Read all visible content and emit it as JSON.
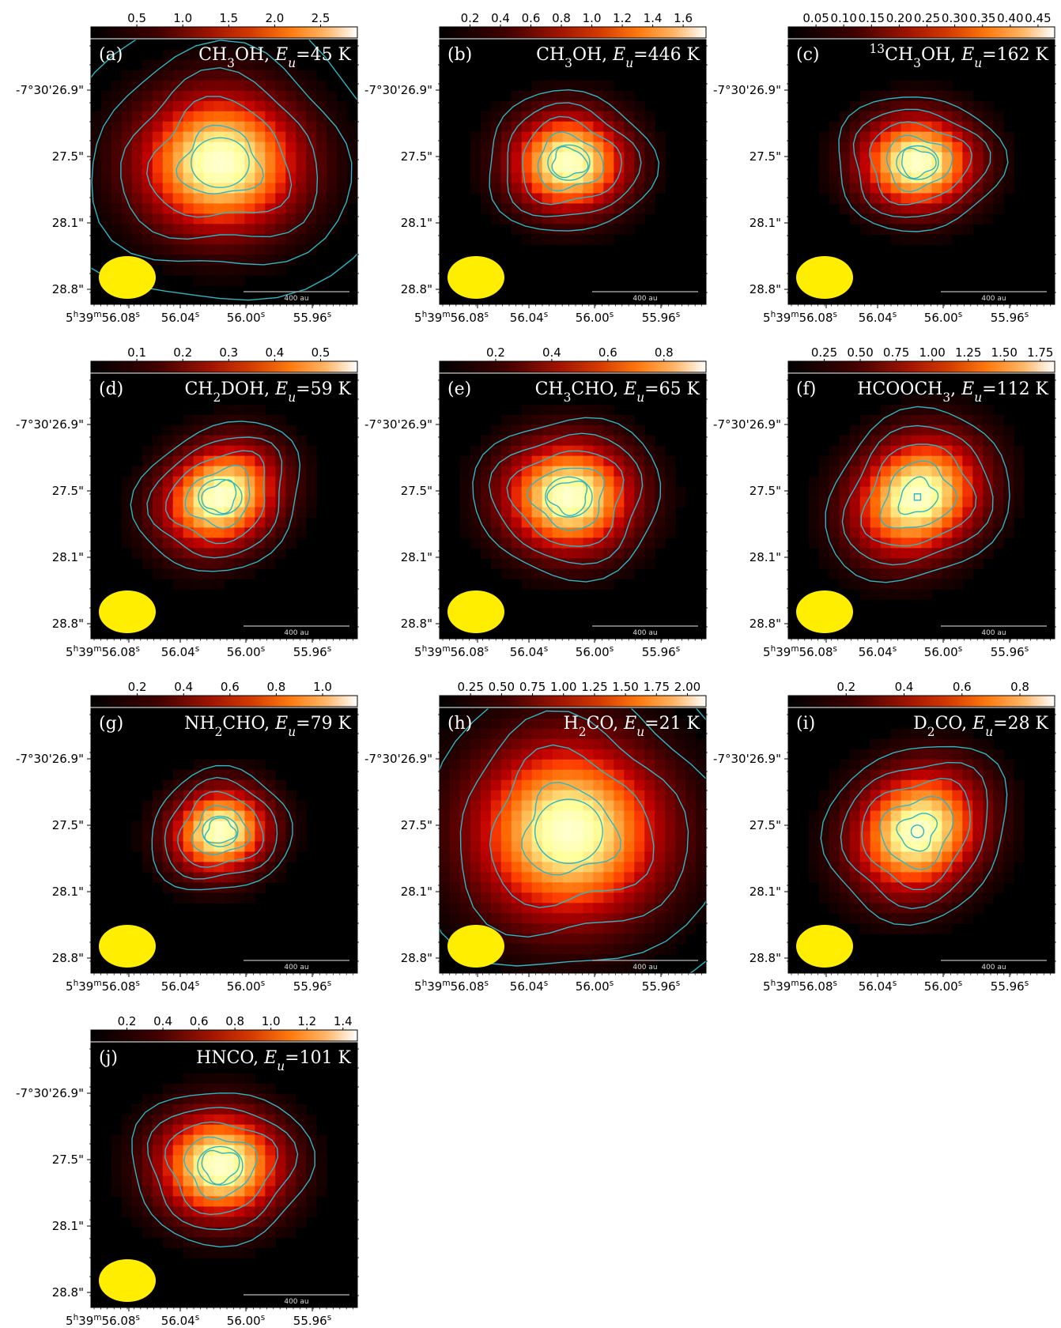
{
  "chart_data": [
    {
      "type": "heatmap",
      "panel_label": "(a)",
      "species_html": "CH<tspan baseline-shift='sub' font-size='70%'>3</tspan>OH,",
      "eu_value": "=45 K",
      "colorbar_ticks": [
        "0.5",
        "1.0",
        "1.5",
        "2.0",
        "2.5"
      ],
      "colorbar_range": [
        0,
        2.9
      ],
      "peak": 2.85,
      "sigma": [
        0.36,
        0.31
      ],
      "aspect": 1.08,
      "tilt": 0,
      "low_outer": true,
      "center_contour": "rounded"
    },
    {
      "type": "heatmap",
      "panel_label": "(b)",
      "species_html": "CH<tspan baseline-shift='sub' font-size='70%'>3</tspan>OH,",
      "eu_value": "=446 K",
      "colorbar_ticks": [
        "0.2",
        "0.4",
        "0.6",
        "0.8",
        "1.0",
        "1.2",
        "1.4",
        "1.6"
      ],
      "colorbar_range": [
        0,
        1.75
      ],
      "peak": 1.7,
      "sigma": [
        0.26,
        0.22
      ],
      "aspect": 1.2,
      "tilt": 0,
      "low_outer": false,
      "center_contour": "rounded"
    },
    {
      "type": "heatmap",
      "panel_label": "(c)",
      "species_html": "<tspan baseline-shift='super' font-size='70%'>13</tspan>CH<tspan baseline-shift='sub' font-size='70%'>3</tspan>OH,",
      "eu_value": "=162 K",
      "colorbar_ticks": [
        "0.05",
        "0.10",
        "0.15",
        "0.20",
        "0.25",
        "0.30",
        "0.35",
        "0.40",
        "0.45"
      ],
      "colorbar_range": [
        0,
        0.48
      ],
      "peak": 0.47,
      "sigma": [
        0.26,
        0.21
      ],
      "aspect": 1.25,
      "tilt": 0,
      "low_outer": false,
      "center_contour": "rounded"
    },
    {
      "type": "heatmap",
      "panel_label": "(d)",
      "species_html": "CH<tspan baseline-shift='sub' font-size='70%'>2</tspan>DOH,",
      "eu_value": "=59 K",
      "colorbar_ticks": [
        "0.1",
        "0.2",
        "0.3",
        "0.4",
        "0.5"
      ],
      "colorbar_range": [
        0,
        0.58
      ],
      "peak": 0.57,
      "sigma": [
        0.27,
        0.22
      ],
      "aspect": 1.3,
      "tilt": -30,
      "low_outer": false,
      "center_contour": "rounded"
    },
    {
      "type": "heatmap",
      "panel_label": "(e)",
      "species_html": "CH<tspan baseline-shift='sub' font-size='70%'>3</tspan>CHO,",
      "eu_value": "=65 K",
      "colorbar_ticks": [
        "0.2",
        "0.4",
        "0.6",
        "0.8"
      ],
      "colorbar_range": [
        0,
        0.95
      ],
      "peak": 0.93,
      "sigma": [
        0.29,
        0.25
      ],
      "aspect": 1.15,
      "tilt": 0,
      "low_outer": false,
      "center_contour": "rounded"
    },
    {
      "type": "heatmap",
      "panel_label": "(f)",
      "species_html": "HCOOCH<tspan baseline-shift='sub' font-size='70%'>3</tspan>,",
      "eu_value": "=112 K",
      "colorbar_ticks": [
        "0.25",
        "0.50",
        "0.75",
        "1.00",
        "1.25",
        "1.50",
        "1.75"
      ],
      "colorbar_range": [
        0,
        1.85
      ],
      "peak": 1.82,
      "sigma": [
        0.3,
        0.25
      ],
      "aspect": 1.2,
      "tilt": -35,
      "low_outer": false,
      "center_contour": "square"
    },
    {
      "type": "heatmap",
      "panel_label": "(g)",
      "species_html": "NH<tspan baseline-shift='sub' font-size='70%'>2</tspan>CHO,",
      "eu_value": "=79 K",
      "colorbar_ticks": [
        "0.2",
        "0.4",
        "0.6",
        "0.8",
        "1.0"
      ],
      "colorbar_range": [
        0,
        1.15
      ],
      "peak": 1.12,
      "sigma": [
        0.22,
        0.19
      ],
      "aspect": 1.25,
      "tilt": -15,
      "low_outer": false,
      "center_contour": "rounded"
    },
    {
      "type": "heatmap",
      "panel_label": "(h)",
      "species_html": "H<tspan baseline-shift='sub' font-size='70%'>2</tspan>CO,",
      "eu_value": "=21 K",
      "colorbar_ticks": [
        "0.25",
        "0.50",
        "0.75",
        "1.00",
        "1.25",
        "1.50",
        "1.75",
        "2.00"
      ],
      "colorbar_range": [
        0,
        2.15
      ],
      "peak": 2.1,
      "sigma": [
        0.42,
        0.4
      ],
      "aspect": 1.1,
      "tilt": 0,
      "low_outer": true,
      "center_contour": "rounded"
    },
    {
      "type": "heatmap",
      "panel_label": "(i)",
      "species_html": "D<tspan baseline-shift='sub' font-size='70%'>2</tspan>CO,",
      "eu_value": "=28 K",
      "colorbar_ticks": [
        "0.2",
        "0.4",
        "0.6",
        "0.8"
      ],
      "colorbar_range": [
        0,
        0.92
      ],
      "peak": 0.9,
      "sigma": [
        0.3,
        0.26
      ],
      "aspect": 1.25,
      "tilt": -40,
      "low_outer": false,
      "center_contour": "small"
    },
    {
      "type": "heatmap",
      "panel_label": "(j)",
      "species_html": "HNCO,",
      "eu_value": "=101 K",
      "colorbar_ticks": [
        "0.2",
        "0.4",
        "0.6",
        "0.8",
        "1.0",
        "1.2",
        "1.4"
      ],
      "colorbar_range": [
        0,
        1.48
      ],
      "peak": 1.45,
      "sigma": [
        0.28,
        0.24
      ],
      "aspect": 1.15,
      "tilt": 0,
      "low_outer": false,
      "center_contour": "rounded"
    }
  ],
  "axes": {
    "ytick_labels": [
      "-7°30'26.9\"",
      "27.5\"",
      "28.1\"",
      "28.8\""
    ],
    "xtick_labels": [
      "56.08",
      "56.04",
      "56.00",
      "55.96"
    ],
    "xtick_units": [
      "s",
      "s",
      "s",
      "s"
    ],
    "ra_prefix": "5h39m"
  },
  "scalebar_label": "400 au",
  "eu_symbol": "E",
  "eu_sub": "u",
  "colors": {
    "contour": "#2bb7c4",
    "beam": "#ffee00",
    "background": "#000000",
    "scalebar": "#9a9a9a"
  }
}
